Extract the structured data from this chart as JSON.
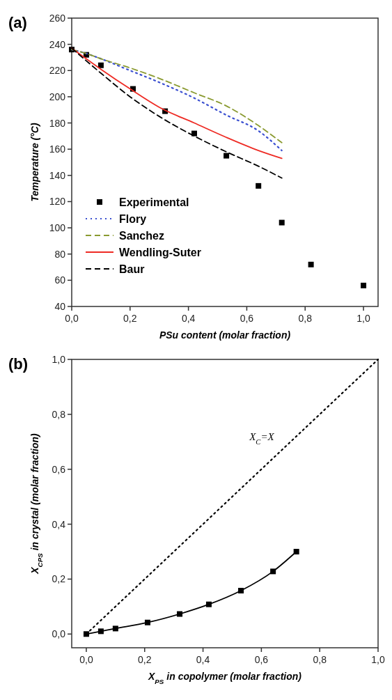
{
  "chart_data": [
    {
      "type": "line",
      "title": "(a)",
      "xlabel": "PSu content (molar fraction)",
      "ylabel": "Temperature (°C)",
      "xlim": [
        0,
        1.05
      ],
      "ylim": [
        40,
        260
      ],
      "xticks": [
        {
          "value": 0,
          "label": "0,0"
        },
        {
          "value": 0.2,
          "label": "0,2"
        },
        {
          "value": 0.4,
          "label": "0,4"
        },
        {
          "value": 0.6,
          "label": "0,6"
        },
        {
          "value": 0.8,
          "label": "0,8"
        },
        {
          "value": 1,
          "label": "1,0"
        }
      ],
      "yticks": [
        40,
        60,
        80,
        100,
        120,
        140,
        160,
        180,
        200,
        220,
        240,
        260
      ],
      "legend": "bottom left",
      "grid": false,
      "series": [
        {
          "name": "Experimental",
          "type": "scatter",
          "marker": "square",
          "color": "#000000",
          "x": [
            0,
            0.05,
            0.1,
            0.21,
            0.32,
            0.42,
            0.53,
            0.64,
            0.72,
            0.82,
            1.0
          ],
          "values": [
            236,
            232,
            224,
            206,
            189,
            172,
            155,
            132,
            104,
            72,
            56
          ]
        },
        {
          "name": "Flory",
          "line_style": "dotted",
          "marker": "none",
          "color": "#3a4fd0",
          "x": [
            0,
            0.05,
            0.1,
            0.2,
            0.3,
            0.42,
            0.53,
            0.64,
            0.72
          ],
          "values": [
            236,
            233,
            229,
            220,
            211,
            199,
            186,
            174,
            159
          ]
        },
        {
          "name": "Sanchez",
          "line_style": "dashed",
          "marker": "none",
          "color": "#8a9a30",
          "x": [
            0,
            0.05,
            0.1,
            0.2,
            0.3,
            0.42,
            0.53,
            0.64,
            0.72
          ],
          "values": [
            236,
            233,
            229,
            222,
            214,
            203,
            193,
            178,
            165
          ]
        },
        {
          "name": "Wendling-Suter",
          "line_style": "solid",
          "marker": "none",
          "color": "#ee2b24",
          "x": [
            0,
            0.1,
            0.2,
            0.3,
            0.42,
            0.53,
            0.64,
            0.72
          ],
          "values": [
            237,
            221,
            206,
            192,
            180,
            169,
            159,
            153
          ]
        },
        {
          "name": "Baur",
          "line_style": "dashed",
          "marker": "none",
          "color": "#000000",
          "x": [
            0,
            0.1,
            0.2,
            0.3,
            0.42,
            0.53,
            0.64,
            0.72
          ],
          "values": [
            237,
            218,
            200,
            185,
            170,
            158,
            147,
            138
          ]
        }
      ]
    },
    {
      "type": "line",
      "title": "(b)",
      "xlabel": "X$_{PS}$ in copolymer (molar fraction)",
      "ylabel": "X$_{CPS}$ in crystal (molar fraction)",
      "xlim": [
        -0.05,
        1.0
      ],
      "ylim": [
        -0.05,
        1.0
      ],
      "xticks": [
        {
          "value": 0,
          "label": "0,0"
        },
        {
          "value": 0.2,
          "label": "0,2"
        },
        {
          "value": 0.4,
          "label": "0,4"
        },
        {
          "value": 0.6,
          "label": "0,6"
        },
        {
          "value": 0.8,
          "label": "0,8"
        },
        {
          "value": 1,
          "label": "1,0"
        }
      ],
      "yticks": [
        {
          "value": 0,
          "label": "0,0"
        },
        {
          "value": 0.2,
          "label": "0,2"
        },
        {
          "value": 0.4,
          "label": "0,4"
        },
        {
          "value": 0.6,
          "label": "0,6"
        },
        {
          "value": 0.8,
          "label": "0,8"
        },
        {
          "value": 1,
          "label": "1,0"
        }
      ],
      "legend": false,
      "grid": false,
      "annotations": [
        "X$_{C}$=X"
      ],
      "series": [
        {
          "line_style": "solid",
          "marker": "square",
          "color": "#000000",
          "x": [
            0,
            0.05,
            0.1,
            0.21,
            0.32,
            0.42,
            0.53,
            0.64,
            0.72
          ],
          "values": [
            0,
            0.01,
            0.02,
            0.042,
            0.073,
            0.108,
            0.158,
            0.228,
            0.3
          ]
        },
        {
          "line_style": "dotted",
          "marker": "none",
          "color": "#000000",
          "x": [
            0,
            1
          ],
          "values": [
            0,
            1
          ]
        }
      ]
    }
  ]
}
